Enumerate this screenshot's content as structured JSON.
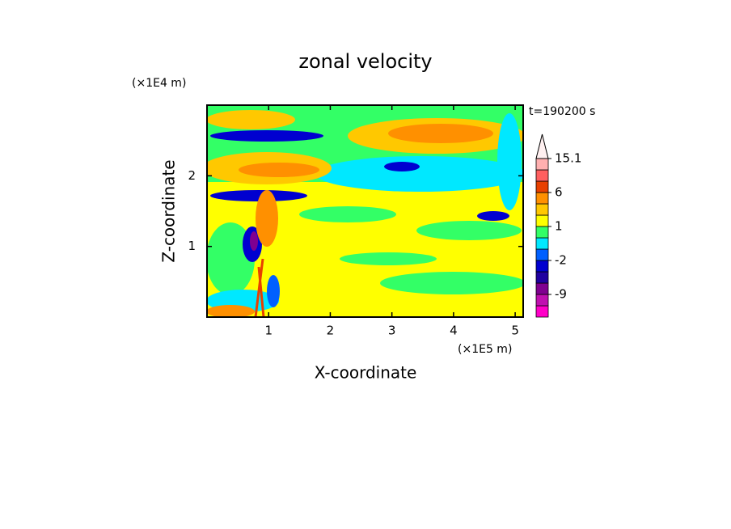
{
  "chart_data": {
    "type": "contour",
    "title": "zonal velocity",
    "x_label": "X-coordinate",
    "y_label": "Z-coordinate",
    "x_unit": "(×1E5 m)",
    "y_unit": "(×1E4 m)",
    "time_label": "t=190200 s",
    "xlim": [
      0,
      5.13
    ],
    "ylim": [
      0,
      3
    ],
    "xticks": [
      1,
      2,
      3,
      4,
      5
    ],
    "yticks": [
      1,
      2
    ],
    "colorbar": {
      "levels": [
        -15,
        -12,
        -9,
        -6,
        -4,
        -2,
        -1,
        0,
        1,
        2,
        4,
        6,
        9,
        12,
        15.1
      ],
      "colors": [
        "#ff00c8",
        "#c010b0",
        "#800090",
        "#2000a0",
        "#0000d0",
        "#0060ff",
        "#00e8ff",
        "#33ff66",
        "#ffff00",
        "#ffc800",
        "#ff9000",
        "#e84000",
        "#ff6060",
        "#ffb0b0"
      ],
      "ticks": [
        15.1,
        6,
        1,
        -2,
        -9
      ]
    }
  }
}
